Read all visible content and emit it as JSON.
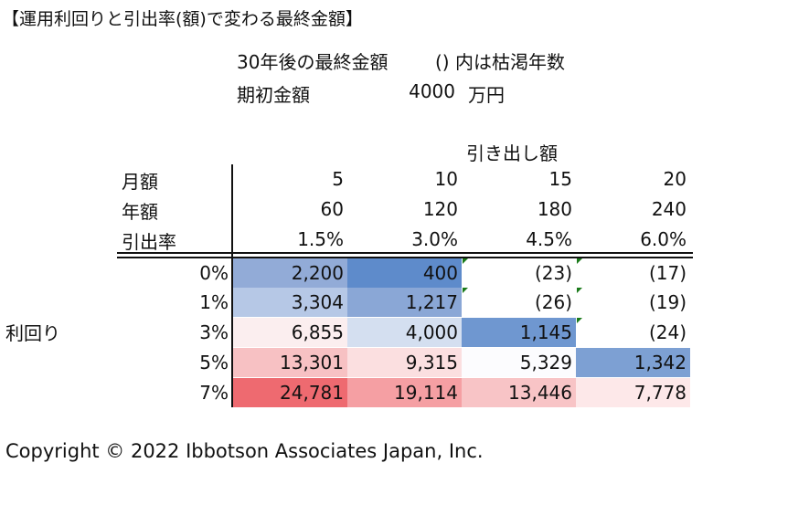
{
  "title": "【運用利回りと引出率(額)で変わる最終金額】",
  "final_amount_label": "30年後の最終金額",
  "paren_note": "()  内は枯渇年数",
  "initial_amount": {
    "label": "期初金額",
    "value": "4000",
    "unit": "万円"
  },
  "withdrawal_header": "引き出し額",
  "header_rows": [
    {
      "label": "月額",
      "values": [
        "5",
        "10",
        "15",
        "20"
      ]
    },
    {
      "label": "年額",
      "values": [
        "60",
        "120",
        "180",
        "240"
      ]
    },
    {
      "label": "引出率",
      "values": [
        "1.5%",
        "3.0%",
        "4.5%",
        "6.0%"
      ]
    }
  ],
  "side_label": "利回り",
  "rows": [
    {
      "rate": "0%",
      "cells": [
        {
          "text": "2,200",
          "color": "#92abd7"
        },
        {
          "text": "400",
          "color": "#5e8bcb"
        },
        {
          "text": "(23)",
          "color": "#ffffff",
          "flag": true
        },
        {
          "text": "(17)",
          "color": "#ffffff",
          "flag": true
        }
      ]
    },
    {
      "rate": "1%",
      "cells": [
        {
          "text": "3,304",
          "color": "#b6c8e6"
        },
        {
          "text": "1,217",
          "color": "#8aa7d6"
        },
        {
          "text": "(26)",
          "color": "#ffffff",
          "flag": true
        },
        {
          "text": "(19)",
          "color": "#ffffff",
          "flag": true
        }
      ]
    },
    {
      "rate": "3%",
      "cells": [
        {
          "text": "6,855",
          "color": "#fbeeef"
        },
        {
          "text": "4,000",
          "color": "#d4dff0"
        },
        {
          "text": "1,145",
          "color": "#6f97d0"
        },
        {
          "text": "(24)",
          "color": "#ffffff",
          "flag": true
        }
      ]
    },
    {
      "rate": "5%",
      "cells": [
        {
          "text": "13,301",
          "color": "#f7c1c3"
        },
        {
          "text": "9,315",
          "color": "#fbdfe0"
        },
        {
          "text": "5,329",
          "color": "#fcfcfe"
        },
        {
          "text": "1,342",
          "color": "#7da0d3"
        }
      ]
    },
    {
      "rate": "7%",
      "cells": [
        {
          "text": "24,781",
          "color": "#ee6a70"
        },
        {
          "text": "19,114",
          "color": "#f59fa3"
        },
        {
          "text": "13,446",
          "color": "#f8c4c6"
        },
        {
          "text": "7,778",
          "color": "#fde8e9"
        }
      ]
    }
  ],
  "copyright": "Copyright © 2022 Ibbotson Associates Japan, Inc."
}
